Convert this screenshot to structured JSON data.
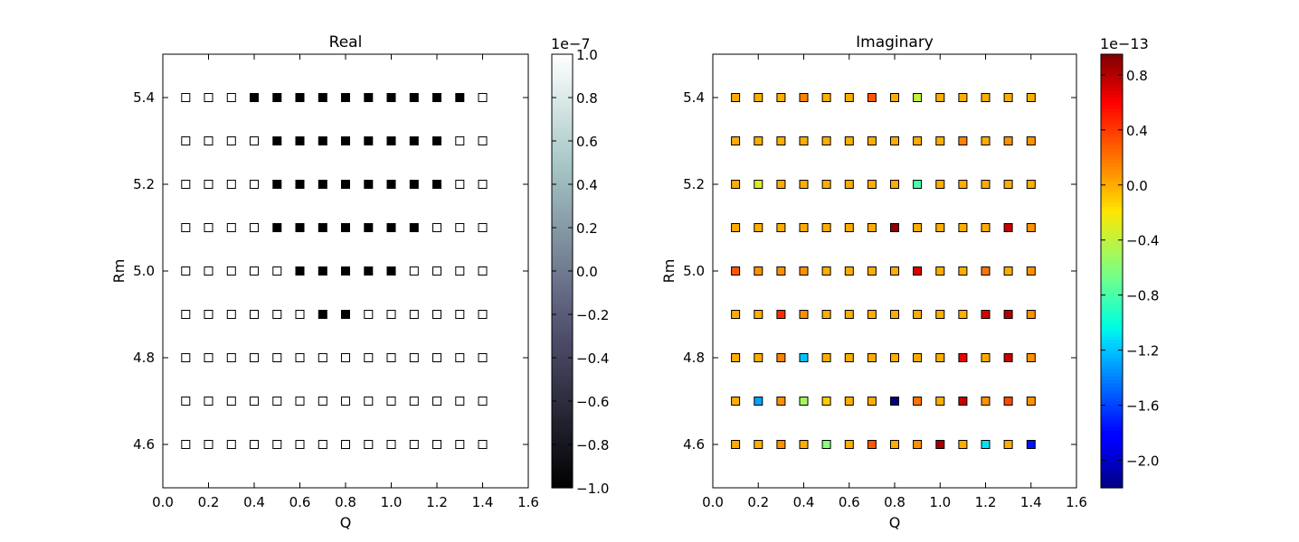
{
  "chart_data": [
    {
      "type": "scatter",
      "title": "Real",
      "xlabel": "Q",
      "ylabel": "Rm",
      "xlim": [
        0.0,
        1.6
      ],
      "ylim": [
        4.5,
        5.5
      ],
      "xticks": [
        "0.0",
        "0.2",
        "0.4",
        "0.6",
        "0.8",
        "1.0",
        "1.2",
        "1.4",
        "1.6"
      ],
      "yticks": [
        "4.6",
        "4.8",
        "5.0",
        "5.2",
        "5.4"
      ],
      "x": [
        0.1,
        0.2,
        0.3,
        0.4,
        0.5,
        0.6,
        0.7,
        0.8,
        0.9,
        1.0,
        1.1,
        1.2,
        1.3,
        1.4
      ],
      "y": [
        4.6,
        4.7,
        4.8,
        4.9,
        5.0,
        5.1,
        5.2,
        5.3,
        5.4
      ],
      "grid": false,
      "colormap": "bone",
      "colorbar": {
        "range": [
          -1.0,
          1.0
        ],
        "exponent_label": "1e−7",
        "ticks": [
          "−1.0",
          "−0.8",
          "−0.6",
          "−0.4",
          "−0.2",
          "0.0",
          "0.2",
          "0.4",
          "0.6",
          "0.8",
          "1.0"
        ]
      },
      "values": [
        [
          1,
          1,
          1,
          1,
          1,
          1,
          1,
          1,
          1,
          1,
          1,
          1,
          1,
          1
        ],
        [
          1,
          1,
          1,
          1,
          1,
          1,
          1,
          1,
          1,
          1,
          1,
          1,
          1,
          1
        ],
        [
          1,
          1,
          1,
          1,
          1,
          1,
          1,
          1,
          1,
          1,
          1,
          1,
          1,
          1
        ],
        [
          1,
          1,
          1,
          1,
          1,
          1,
          -1,
          -1,
          1,
          1,
          1,
          1,
          1,
          1
        ],
        [
          1,
          1,
          1,
          1,
          1,
          -1,
          -1,
          -1,
          -1,
          -1,
          1,
          1,
          1,
          1
        ],
        [
          1,
          1,
          1,
          1,
          -1,
          -1,
          -1,
          -1,
          -1,
          -1,
          -1,
          1,
          1,
          1
        ],
        [
          1,
          1,
          1,
          1,
          -1,
          -1,
          -1,
          -1,
          -1,
          -1,
          -1,
          -1,
          1,
          1
        ],
        [
          1,
          1,
          1,
          1,
          -1,
          -1,
          -1,
          -1,
          -1,
          -1,
          -1,
          -1,
          1,
          1
        ],
        [
          1,
          1,
          1,
          -1,
          -1,
          -1,
          -1,
          -1,
          -1,
          -1,
          -1,
          -1,
          -1,
          1
        ]
      ]
    },
    {
      "type": "scatter",
      "title": "Imaginary",
      "xlabel": "Q",
      "ylabel": "Rm",
      "xlim": [
        0.0,
        1.6
      ],
      "ylim": [
        4.5,
        5.5
      ],
      "xticks": [
        "0.0",
        "0.2",
        "0.4",
        "0.6",
        "0.8",
        "1.0",
        "1.2",
        "1.4",
        "1.6"
      ],
      "yticks": [
        "4.6",
        "4.8",
        "5.0",
        "5.2",
        "5.4"
      ],
      "x": [
        0.1,
        0.2,
        0.3,
        0.4,
        0.5,
        0.6,
        0.7,
        0.8,
        0.9,
        1.0,
        1.1,
        1.2,
        1.3,
        1.4
      ],
      "y": [
        4.6,
        4.7,
        4.8,
        4.9,
        5.0,
        5.1,
        5.2,
        5.3,
        5.4
      ],
      "grid": false,
      "colormap": "jet",
      "colorbar": {
        "range": [
          -2.2,
          0.95
        ],
        "exponent_label": "1e−13",
        "ticks": [
          "−2.0",
          "−1.6",
          "−1.2",
          "−0.8",
          "−0.4",
          "0.0",
          "0.4",
          "0.8"
        ]
      },
      "values": [
        [
          0.0,
          0.0,
          0.1,
          0.0,
          -0.6,
          0.0,
          0.3,
          0.0,
          0.1,
          0.85,
          0.0,
          -1.1,
          0.0,
          -1.75
        ],
        [
          0.0,
          -1.3,
          0.1,
          -0.5,
          -0.1,
          0.0,
          0.0,
          -2.2,
          0.2,
          0.0,
          0.75,
          0.1,
          0.35,
          0.1
        ],
        [
          0.0,
          0.0,
          0.15,
          -1.2,
          0.0,
          0.0,
          0.0,
          0.0,
          0.0,
          0.0,
          0.65,
          0.0,
          0.75,
          0.1
        ],
        [
          0.0,
          0.0,
          0.45,
          0.1,
          0.0,
          0.0,
          0.0,
          0.0,
          0.0,
          0.0,
          0.0,
          0.7,
          0.8,
          0.1
        ],
        [
          0.3,
          0.1,
          0.1,
          0.1,
          0.0,
          0.0,
          0.0,
          0.0,
          0.7,
          0.0,
          0.0,
          0.2,
          0.0,
          0.1
        ],
        [
          0.0,
          0.0,
          0.0,
          0.0,
          0.0,
          0.0,
          0.0,
          0.9,
          0.0,
          0.0,
          0.0,
          0.0,
          0.75,
          0.1
        ],
        [
          0.0,
          -0.3,
          0.0,
          0.0,
          0.0,
          0.0,
          0.0,
          0.0,
          -0.8,
          0.0,
          0.0,
          0.0,
          0.0,
          0.0
        ],
        [
          0.0,
          0.0,
          0.0,
          0.0,
          0.0,
          0.0,
          0.0,
          0.0,
          0.0,
          0.0,
          0.15,
          0.0,
          0.1,
          0.1
        ],
        [
          0.0,
          0.0,
          0.0,
          0.15,
          0.0,
          0.0,
          0.3,
          0.0,
          -0.4,
          0.0,
          0.0,
          0.0,
          0.0,
          0.0
        ]
      ]
    }
  ]
}
